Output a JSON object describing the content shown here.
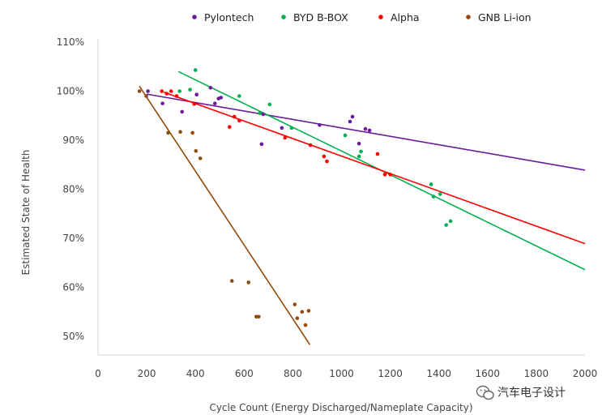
{
  "chart_data": {
    "type": "scatter",
    "title": "",
    "xlabel": "Cycle Count (Energy Discharged/Nameplate Capacity)",
    "ylabel": "Estimated State of Health",
    "xlim": [
      0,
      2000
    ],
    "ylim": [
      48,
      110
    ],
    "x_ticks": [
      0,
      200,
      400,
      600,
      800,
      1000,
      1200,
      1400,
      1600,
      1800,
      2000
    ],
    "x_tick_labels": [
      "0",
      "200",
      "400",
      "600",
      "800",
      "1000",
      "1200",
      "1400",
      "1600",
      "1800",
      "2000"
    ],
    "y_ticks": [
      50,
      60,
      70,
      80,
      90,
      100,
      110
    ],
    "y_tick_labels": [
      "50%",
      "60%",
      "70%",
      "80%",
      "90%",
      "100%",
      "110%"
    ],
    "grid": false,
    "legend_position": "top",
    "series": [
      {
        "name": "Pylontech",
        "color": "#6a1b9a",
        "points": [
          [
            205,
            100
          ],
          [
            265,
            97.5
          ],
          [
            345,
            95.8
          ],
          [
            405,
            99.3
          ],
          [
            462,
            100.7
          ],
          [
            480,
            97.5
          ],
          [
            495,
            98.5
          ],
          [
            505,
            98.7
          ],
          [
            672,
            89.2
          ],
          [
            678,
            95.3
          ],
          [
            755,
            92.5
          ],
          [
            910,
            93.1
          ],
          [
            1035,
            93.8
          ],
          [
            1045,
            94.8
          ],
          [
            1072,
            89.3
          ],
          [
            1098,
            92.3
          ],
          [
            1115,
            92.0
          ]
        ],
        "trend": [
          [
            200,
            99.4
          ],
          [
            2000,
            83.9
          ]
        ]
      },
      {
        "name": "BYD B-BOX",
        "color": "#00b050",
        "points": [
          [
            335,
            100
          ],
          [
            378,
            100.3
          ],
          [
            400,
            104.3
          ],
          [
            580,
            99
          ],
          [
            665,
            95.5
          ],
          [
            705,
            97.3
          ],
          [
            795,
            92.5
          ],
          [
            1015,
            91
          ],
          [
            1072,
            86.7
          ],
          [
            1080,
            87.7
          ],
          [
            1368,
            81
          ],
          [
            1378,
            78.5
          ],
          [
            1405,
            79
          ],
          [
            1430,
            72.7
          ],
          [
            1448,
            73.5
          ]
        ],
        "trend": [
          [
            330,
            104
          ],
          [
            2000,
            63.6
          ]
        ]
      },
      {
        "name": "Alpha",
        "color": "#ff0000",
        "points": [
          [
            262,
            100
          ],
          [
            282,
            99.5
          ],
          [
            300,
            100
          ],
          [
            323,
            99
          ],
          [
            395,
            97.4
          ],
          [
            540,
            92.7
          ],
          [
            560,
            94.8
          ],
          [
            580,
            94
          ],
          [
            768,
            90.5
          ],
          [
            872,
            89
          ],
          [
            928,
            86.7
          ],
          [
            940,
            85.7
          ],
          [
            1148,
            87.2
          ],
          [
            1178,
            83
          ],
          [
            1200,
            83
          ]
        ],
        "trend": [
          [
            270,
            99.8
          ],
          [
            2000,
            68.9
          ]
        ]
      },
      {
        "name": "GNB Li-ion",
        "color": "#954a09",
        "points": [
          [
            170,
            100
          ],
          [
            198,
            99
          ],
          [
            288,
            91.5
          ],
          [
            338,
            91.7
          ],
          [
            388,
            91.5
          ],
          [
            402,
            87.8
          ],
          [
            420,
            86.3
          ],
          [
            550,
            61.3
          ],
          [
            618,
            61
          ],
          [
            650,
            54
          ],
          [
            660,
            54
          ],
          [
            808,
            56.5
          ],
          [
            818,
            53.7
          ],
          [
            838,
            55
          ],
          [
            852,
            52.3
          ],
          [
            865,
            55.2
          ]
        ],
        "trend": [
          [
            170,
            101
          ],
          [
            870,
            48.3
          ]
        ]
      }
    ]
  },
  "watermark": {
    "text": "汽车电子设计",
    "icon": "wechat-icon"
  }
}
